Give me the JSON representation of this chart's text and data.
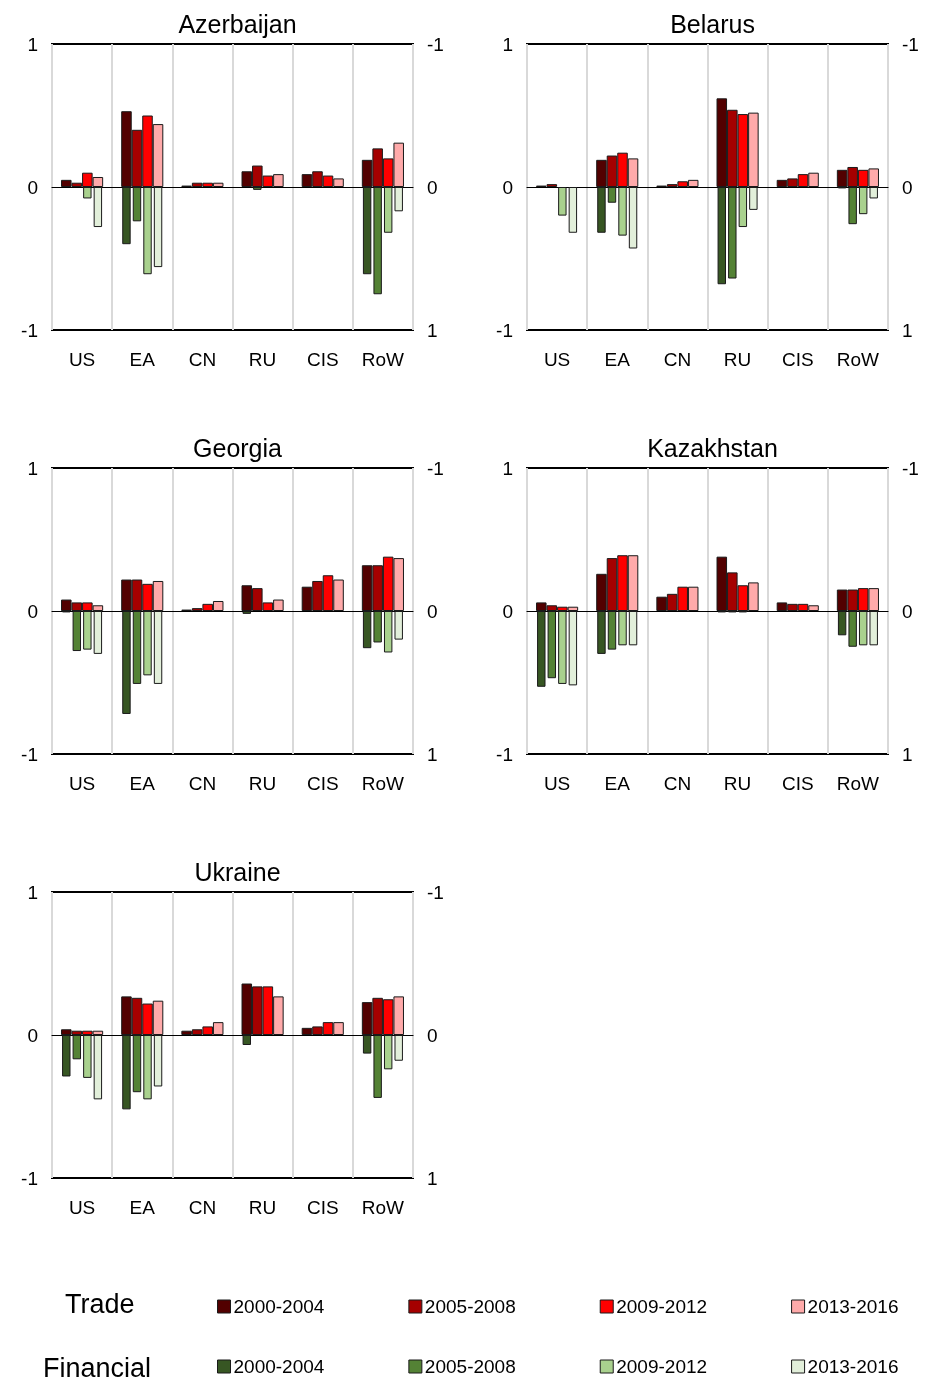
{
  "chart_data": [
    {
      "type": "bar",
      "title": "Azerbaijan",
      "categories": [
        "US",
        "EA",
        "CN",
        "RU",
        "CIS",
        "RoW"
      ],
      "ylim": [
        -1,
        1
      ],
      "yticks": [
        -1,
        0,
        1
      ],
      "y2lim": [
        1,
        -1
      ],
      "y2ticks": [
        -1,
        0,
        1
      ],
      "grid": "x",
      "series": [
        {
          "color": "#520000",
          "values": [
            0.05,
            0.53,
            0.01,
            0.11,
            0.09,
            0.19
          ]
        },
        {
          "color": "#a50000",
          "values": [
            0.03,
            0.4,
            0.03,
            0.15,
            0.11,
            0.27
          ]
        },
        {
          "color": "#ff0000",
          "values": [
            0.1,
            0.5,
            0.03,
            0.08,
            0.08,
            0.2
          ]
        },
        {
          "color": "#ffaaaa",
          "values": [
            0.07,
            0.44,
            0.03,
            0.09,
            0.06,
            0.31
          ]
        },
        {
          "color": "#375623",
          "axis": "y2",
          "values": [
            null,
            0.4,
            null,
            null,
            null,
            0.61
          ]
        },
        {
          "color": "#548235",
          "axis": "y2",
          "values": [
            null,
            0.24,
            null,
            0.02,
            null,
            0.75
          ]
        },
        {
          "color": "#a9d18e",
          "axis": "y2",
          "values": [
            0.08,
            0.61,
            null,
            null,
            null,
            0.32
          ]
        },
        {
          "color": "#e2efda",
          "axis": "y2",
          "values": [
            0.28,
            0.56,
            null,
            null,
            null,
            0.17
          ]
        }
      ]
    },
    {
      "type": "bar",
      "title": "Belarus",
      "categories": [
        "US",
        "EA",
        "CN",
        "RU",
        "CIS",
        "RoW"
      ],
      "ylim": [
        -1,
        1
      ],
      "yticks": [
        -1,
        0,
        1
      ],
      "y2lim": [
        1,
        -1
      ],
      "y2ticks": [
        -1,
        0,
        1
      ],
      "grid": "x",
      "series": [
        {
          "color": "#520000",
          "values": [
            0.01,
            0.19,
            0.01,
            0.62,
            0.05,
            0.12
          ]
        },
        {
          "color": "#a50000",
          "values": [
            0.02,
            0.22,
            0.02,
            0.54,
            0.06,
            0.14
          ]
        },
        {
          "color": "#ff0000",
          "values": [
            null,
            0.24,
            0.04,
            0.51,
            0.09,
            0.12
          ]
        },
        {
          "color": "#ffaaaa",
          "values": [
            null,
            0.2,
            0.05,
            0.52,
            0.1,
            0.13
          ]
        },
        {
          "color": "#375623",
          "axis": "y2",
          "values": [
            null,
            0.32,
            null,
            0.68,
            null,
            0.01
          ]
        },
        {
          "color": "#548235",
          "axis": "y2",
          "values": [
            null,
            0.11,
            null,
            0.64,
            null,
            0.26
          ]
        },
        {
          "color": "#a9d18e",
          "axis": "y2",
          "values": [
            0.2,
            0.34,
            null,
            0.28,
            null,
            0.19
          ]
        },
        {
          "color": "#e2efda",
          "axis": "y2",
          "values": [
            0.32,
            0.43,
            null,
            0.16,
            null,
            0.08
          ]
        }
      ]
    },
    {
      "type": "bar",
      "title": "Georgia",
      "categories": [
        "US",
        "EA",
        "CN",
        "RU",
        "CIS",
        "RoW"
      ],
      "ylim": [
        -1,
        1
      ],
      "yticks": [
        -1,
        0,
        1
      ],
      "y2lim": [
        1,
        -1
      ],
      "y2ticks": [
        -1,
        0,
        1
      ],
      "grid": "x",
      "series": [
        {
          "color": "#520000",
          "values": [
            0.08,
            0.22,
            0.01,
            0.18,
            0.17,
            0.32
          ]
        },
        {
          "color": "#a50000",
          "values": [
            0.06,
            0.22,
            0.02,
            0.16,
            0.21,
            0.32
          ]
        },
        {
          "color": "#ff0000",
          "values": [
            0.06,
            0.19,
            0.05,
            0.06,
            0.25,
            0.38
          ]
        },
        {
          "color": "#ffaaaa",
          "values": [
            0.04,
            0.21,
            0.07,
            0.08,
            0.22,
            0.37
          ]
        },
        {
          "color": "#375623",
          "axis": "y2",
          "values": [
            0.01,
            0.72,
            null,
            0.02,
            null,
            0.26
          ]
        },
        {
          "color": "#548235",
          "axis": "y2",
          "values": [
            0.28,
            0.51,
            null,
            null,
            null,
            0.22
          ]
        },
        {
          "color": "#a9d18e",
          "axis": "y2",
          "values": [
            0.27,
            0.45,
            null,
            null,
            null,
            0.29
          ]
        },
        {
          "color": "#e2efda",
          "axis": "y2",
          "values": [
            0.3,
            0.51,
            null,
            null,
            null,
            0.2
          ]
        }
      ]
    },
    {
      "type": "bar",
      "title": "Kazakhstan",
      "categories": [
        "US",
        "EA",
        "CN",
        "RU",
        "CIS",
        "RoW"
      ],
      "ylim": [
        -1,
        1
      ],
      "yticks": [
        -1,
        0,
        1
      ],
      "y2lim": [
        1,
        -1
      ],
      "y2ticks": [
        -1,
        0,
        1
      ],
      "grid": "x",
      "series": [
        {
          "color": "#520000",
          "values": [
            0.06,
            0.26,
            0.1,
            0.38,
            0.06,
            0.15
          ]
        },
        {
          "color": "#a50000",
          "values": [
            0.04,
            0.37,
            0.12,
            0.27,
            0.05,
            0.15
          ]
        },
        {
          "color": "#ff0000",
          "values": [
            0.03,
            0.39,
            0.17,
            0.18,
            0.05,
            0.16
          ]
        },
        {
          "color": "#ffaaaa",
          "values": [
            0.03,
            0.39,
            0.17,
            0.2,
            0.04,
            0.16
          ]
        },
        {
          "color": "#375623",
          "axis": "y2",
          "values": [
            0.53,
            0.3,
            null,
            0.01,
            null,
            0.17
          ]
        },
        {
          "color": "#548235",
          "axis": "y2",
          "values": [
            0.47,
            0.27,
            null,
            0.01,
            null,
            0.25
          ]
        },
        {
          "color": "#a9d18e",
          "axis": "y2",
          "values": [
            0.51,
            0.24,
            null,
            0.01,
            null,
            0.24
          ]
        },
        {
          "color": "#e2efda",
          "axis": "y2",
          "values": [
            0.52,
            0.24,
            null,
            null,
            null,
            0.24
          ]
        }
      ]
    },
    {
      "type": "bar",
      "title": "Ukraine",
      "categories": [
        "US",
        "EA",
        "CN",
        "RU",
        "CIS",
        "RoW"
      ],
      "ylim": [
        -1,
        1
      ],
      "yticks": [
        -1,
        0,
        1
      ],
      "y2lim": [
        1,
        -1
      ],
      "y2ticks": [
        -1,
        0,
        1
      ],
      "grid": "x",
      "legend": "bottom",
      "annotations": [
        "Trade",
        "Financial"
      ],
      "series": [
        {
          "name": "2000-2004",
          "color": "#520000",
          "values": [
            0.04,
            0.27,
            0.03,
            0.36,
            0.05,
            0.23
          ]
        },
        {
          "name": "2005-2008",
          "color": "#a50000",
          "values": [
            0.03,
            0.26,
            0.04,
            0.34,
            0.06,
            0.26
          ]
        },
        {
          "name": "2009-2012",
          "color": "#ff0000",
          "values": [
            0.03,
            0.22,
            0.06,
            0.34,
            0.09,
            0.25
          ]
        },
        {
          "name": "2013-2016",
          "color": "#ffaaaa",
          "values": [
            0.03,
            0.24,
            0.09,
            0.27,
            0.09,
            0.27
          ]
        },
        {
          "name": "2000-2004",
          "color": "#375623",
          "axis": "y2",
          "values": [
            0.29,
            0.52,
            null,
            0.07,
            null,
            0.13
          ]
        },
        {
          "name": "2005-2008",
          "color": "#548235",
          "axis": "y2",
          "values": [
            0.17,
            0.4,
            null,
            null,
            null,
            0.44
          ]
        },
        {
          "name": "2009-2012",
          "color": "#a9d18e",
          "axis": "y2",
          "values": [
            0.3,
            0.45,
            null,
            null,
            null,
            0.24
          ]
        },
        {
          "name": "2013-2016",
          "color": "#e2efda",
          "axis": "y2",
          "values": [
            0.45,
            0.36,
            null,
            null,
            null,
            0.18
          ]
        }
      ]
    }
  ]
}
